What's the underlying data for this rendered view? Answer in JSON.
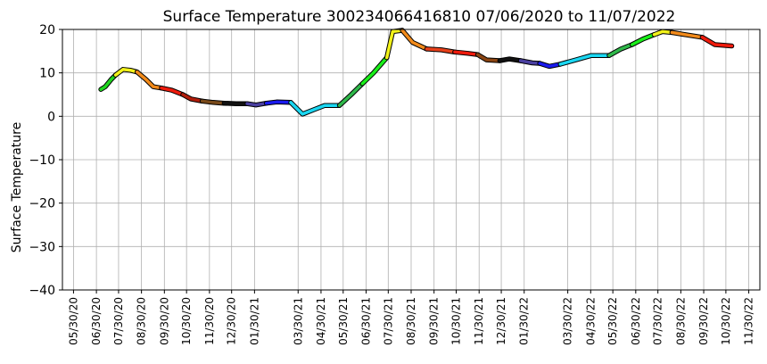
{
  "chart_data": {
    "type": "line",
    "title": "Surface Temperature 300234066416810  07/06/2020 to 11/07/2022",
    "ylabel": "Surface Temperature",
    "xlabel": "",
    "ylim": [
      -40,
      20
    ],
    "yticks": [
      -40,
      -30,
      -20,
      -10,
      0,
      10,
      20
    ],
    "xlim": [
      "2020-05-15",
      "2022-12-15"
    ],
    "xticks": [
      "05/30/20",
      "06/30/20",
      "07/30/20",
      "08/30/20",
      "09/30/20",
      "10/30/20",
      "11/30/20",
      "12/30/20",
      "01/30/21",
      "03/30/21",
      "04/30/21",
      "05/30/21",
      "06/30/21",
      "07/30/21",
      "08/30/21",
      "09/30/21",
      "10/30/21",
      "11/30/21",
      "12/30/21",
      "01/30/22",
      "03/30/22",
      "04/30/22",
      "05/30/22",
      "06/30/22",
      "07/30/22",
      "08/30/22",
      "09/30/22",
      "10/30/22",
      "11/30/22"
    ],
    "grid": true,
    "legend": "none",
    "series": [
      {
        "color": "#1fd51f",
        "x": [
          "2020-07-06",
          "2020-07-12",
          "2020-07-20",
          "2020-07-26"
        ],
        "y": [
          6.2,
          6.8,
          8.5,
          9.5
        ]
      },
      {
        "color": "#f2f21a",
        "x": [
          "2020-07-26",
          "2020-08-05",
          "2020-08-15",
          "2020-08-24"
        ],
        "y": [
          9.5,
          10.8,
          10.6,
          10.2
        ]
      },
      {
        "color": "#f28a1a",
        "x": [
          "2020-08-24",
          "2020-09-05",
          "2020-09-15",
          "2020-09-26"
        ],
        "y": [
          10.2,
          8.5,
          6.8,
          6.5
        ]
      },
      {
        "color": "#ef1b0c",
        "x": [
          "2020-09-26",
          "2020-10-10",
          "2020-10-25"
        ],
        "y": [
          6.5,
          6.0,
          5.0
        ]
      },
      {
        "color": "#b01d0a",
        "x": [
          "2020-10-25",
          "2020-11-05",
          "2020-11-20"
        ],
        "y": [
          5.0,
          4.0,
          3.5
        ]
      },
      {
        "color": "#7a4a1a",
        "x": [
          "2020-11-20",
          "2020-12-05",
          "2020-12-20"
        ],
        "y": [
          3.5,
          3.2,
          3.0
        ]
      },
      {
        "color": "#111111",
        "x": [
          "2020-12-20",
          "2021-01-05",
          "2021-01-20"
        ],
        "y": [
          3.0,
          2.9,
          2.9
        ]
      },
      {
        "color": "#4a3fa0",
        "x": [
          "2021-01-20",
          "2021-02-01",
          "2021-02-15"
        ],
        "y": [
          2.9,
          2.6,
          3.0
        ]
      },
      {
        "color": "#1a1aef",
        "x": [
          "2021-02-15",
          "2021-03-01",
          "2021-03-20"
        ],
        "y": [
          3.0,
          3.3,
          3.2
        ]
      },
      {
        "color": "#1ad7f2",
        "x": [
          "2021-03-20",
          "2021-04-05",
          "2021-04-20",
          "2021-05-05",
          "2021-05-25"
        ],
        "y": [
          3.2,
          0.5,
          1.5,
          2.5,
          2.5
        ]
      },
      {
        "color": "#2fb84a",
        "x": [
          "2021-05-25",
          "2021-06-10",
          "2021-06-25"
        ],
        "y": [
          2.5,
          5.0,
          7.5
        ]
      },
      {
        "color": "#1aef1a",
        "x": [
          "2021-06-25",
          "2021-07-10",
          "2021-07-28"
        ],
        "y": [
          7.5,
          10.0,
          13.5
        ]
      },
      {
        "color": "#f2f21a",
        "x": [
          "2021-07-28",
          "2021-08-05",
          "2021-08-18"
        ],
        "y": [
          13.5,
          19.5,
          19.8
        ]
      },
      {
        "color": "#f28a1a",
        "x": [
          "2021-08-18",
          "2021-09-01",
          "2021-09-20"
        ],
        "y": [
          19.8,
          17.0,
          15.5
        ]
      },
      {
        "color": "#e8401a",
        "x": [
          "2021-09-20",
          "2021-10-10",
          "2021-10-28"
        ],
        "y": [
          15.5,
          15.3,
          14.8
        ]
      },
      {
        "color": "#ef1b0c",
        "x": [
          "2021-10-28",
          "2021-11-15",
          "2021-11-28"
        ],
        "y": [
          14.8,
          14.5,
          14.2
        ]
      },
      {
        "color": "#8b4513",
        "x": [
          "2021-11-28",
          "2021-12-10",
          "2021-12-28"
        ],
        "y": [
          14.2,
          13.0,
          12.8
        ]
      },
      {
        "color": "#111111",
        "x": [
          "2021-12-28",
          "2022-01-10",
          "2022-01-25"
        ],
        "y": [
          12.8,
          13.2,
          12.8
        ]
      },
      {
        "color": "#4a3fa0",
        "x": [
          "2022-01-25",
          "2022-02-10",
          "2022-02-20"
        ],
        "y": [
          12.8,
          12.3,
          12.2
        ]
      },
      {
        "color": "#1a1aef",
        "x": [
          "2022-02-20",
          "2022-03-05",
          "2022-03-20"
        ],
        "y": [
          12.2,
          11.5,
          12.0
        ]
      },
      {
        "color": "#1ad7f2",
        "x": [
          "2022-03-20",
          "2022-04-10",
          "2022-05-01",
          "2022-05-25"
        ],
        "y": [
          12.0,
          13.0,
          14.0,
          14.0
        ]
      },
      {
        "color": "#2fb84a",
        "x": [
          "2022-05-25",
          "2022-06-10",
          "2022-06-25"
        ],
        "y": [
          14.0,
          15.5,
          16.5
        ]
      },
      {
        "color": "#1aef1a",
        "x": [
          "2022-06-25",
          "2022-07-10",
          "2022-07-25"
        ],
        "y": [
          16.5,
          17.8,
          18.8
        ]
      },
      {
        "color": "#f2f21a",
        "x": [
          "2022-07-25",
          "2022-08-05",
          "2022-08-18"
        ],
        "y": [
          18.8,
          19.5,
          19.3
        ]
      },
      {
        "color": "#f28a1a",
        "x": [
          "2022-08-18",
          "2022-09-05",
          "2022-09-28"
        ],
        "y": [
          19.3,
          18.8,
          18.2
        ]
      },
      {
        "color": "#ef1b0c",
        "x": [
          "2022-09-28",
          "2022-10-15",
          "2022-11-07"
        ],
        "y": [
          18.2,
          16.5,
          16.2
        ]
      }
    ]
  }
}
